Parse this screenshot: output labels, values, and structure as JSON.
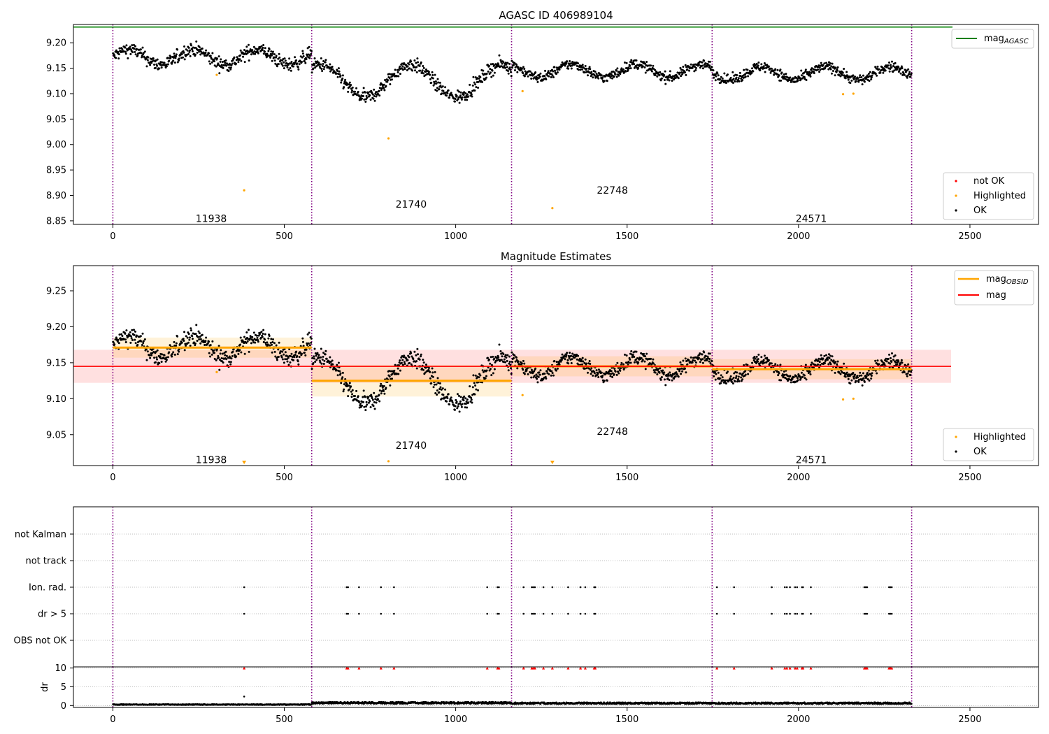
{
  "colors": {
    "ok": "#000000",
    "highlighted": "#ffa500",
    "not_ok": "#ff0000",
    "mag_agasc": "#008000",
    "mag": "#ff0000",
    "mag_obsid": "#ffa500",
    "obs_line": "#800080"
  },
  "panel1": {
    "title": "AGASC ID 406989104",
    "yticks": [
      "8.85",
      "8.90",
      "8.95",
      "9.00",
      "9.05",
      "9.10",
      "9.15",
      "9.20"
    ],
    "xticks": [
      "0",
      "500",
      "1000",
      "1500",
      "2000",
      "2500"
    ],
    "legend_top": {
      "mag_agasc": "mag",
      "mag_agasc_sub": "AGASC"
    },
    "legend_bottom": [
      "not OK",
      "Highlighted",
      "OK"
    ]
  },
  "panel2": {
    "title": "Magnitude Estimates",
    "yticks": [
      "9.05",
      "9.10",
      "9.15",
      "9.20",
      "9.25"
    ],
    "xticks": [
      "0",
      "500",
      "1000",
      "1500",
      "2000",
      "2500"
    ],
    "legend_top": {
      "mag_obsid": "mag",
      "mag_obsid_sub": "OBSID",
      "mag": "mag"
    },
    "legend_bottom": [
      "Highlighted",
      "OK"
    ]
  },
  "panel3": {
    "ylabels": [
      "not Kalman",
      "not track",
      "Ion. rad.",
      "dr > 5",
      "OBS not OK"
    ],
    "xticks": [
      "0",
      "500",
      "1000",
      "1500",
      "2000",
      "2500"
    ]
  },
  "panel4": {
    "ylabel": "dr",
    "yticks": [
      "0",
      "5",
      "10"
    ],
    "xticks": [
      "0",
      "500",
      "1000",
      "1500",
      "2000",
      "2500"
    ]
  },
  "obsids": [
    "11938",
    "21740",
    "22748",
    "24571"
  ],
  "chart_data": [
    {
      "type": "scatter",
      "title": "AGASC ID 406989104",
      "xlim": [
        -115,
        2700
      ],
      "ylim": [
        8.843,
        9.236
      ],
      "mag_agasc": 9.231,
      "obs_boundaries": [
        0,
        580,
        1163,
        1748,
        2330
      ],
      "obsid_labels": [
        {
          "text": "11938",
          "x": 287,
          "y": 8.855
        },
        {
          "text": "21740",
          "x": 870,
          "y": 8.883
        },
        {
          "text": "22748",
          "x": 1457,
          "y": 8.91
        },
        {
          "text": "24571",
          "x": 2037,
          "y": 8.855
        }
      ],
      "highlighted": [
        [
          383,
          8.91
        ],
        [
          804,
          9.012
        ],
        [
          1282,
          8.875
        ],
        [
          303,
          9.137
        ],
        [
          1195,
          9.105
        ],
        [
          2130,
          9.099
        ],
        [
          2160,
          9.1
        ]
      ],
      "ok_segments": [
        {
          "x": [
            0,
            580
          ],
          "mean": 9.172,
          "amp": 0.015,
          "noise": 0.012
        },
        {
          "x": [
            580,
            1163
          ],
          "mean": 9.125,
          "amp": 0.032,
          "noise": 0.012
        },
        {
          "x": [
            1163,
            1748
          ],
          "mean": 9.145,
          "amp": 0.013,
          "noise": 0.009
        },
        {
          "x": [
            1748,
            2330
          ],
          "mean": 9.14,
          "amp": 0.013,
          "noise": 0.009
        }
      ],
      "legend": [
        "not OK",
        "Highlighted",
        "OK"
      ]
    },
    {
      "type": "scatter",
      "title": "Magnitude Estimates",
      "xlim": [
        -115,
        2700
      ],
      "ylim": [
        9.007,
        9.285
      ],
      "mag": 9.145,
      "mag_band": [
        9.122,
        9.168
      ],
      "obsid_means": [
        {
          "x": [
            0,
            580
          ],
          "mean": 9.171,
          "band": [
            9.157,
            9.185
          ]
        },
        {
          "x": [
            580,
            1163
          ],
          "mean": 9.125,
          "band": [
            9.103,
            9.147
          ]
        },
        {
          "x": [
            1163,
            1748
          ],
          "mean": 9.145,
          "band": [
            9.131,
            9.159
          ]
        },
        {
          "x": [
            1748,
            2330
          ],
          "mean": 9.141,
          "band": [
            9.127,
            9.155
          ]
        }
      ],
      "highlighted": [
        [
          303,
          9.137
        ],
        [
          1195,
          9.105
        ],
        [
          2130,
          9.099
        ],
        [
          2160,
          9.1
        ],
        [
          804,
          9.013
        ]
      ],
      "off_scale_markers": [
        383,
        1282
      ],
      "legend": [
        "Highlighted",
        "OK"
      ]
    },
    {
      "type": "scatter",
      "categories": [
        "not Kalman",
        "not track",
        "Ion. rad.",
        "dr > 5",
        "OBS not OK"
      ],
      "xlim": [
        -115,
        2700
      ],
      "flag_x": [
        383,
        682,
        686,
        718,
        782,
        820,
        1092,
        1122,
        1126,
        1198,
        1222,
        1226,
        1231,
        1256,
        1282,
        1328,
        1364,
        1378,
        1404,
        1407,
        1762,
        1812,
        1922,
        1960,
        1966,
        1975,
        1990,
        1996,
        2010,
        2013,
        2036,
        2192,
        2196,
        2200,
        2264,
        2268,
        2272
      ]
    },
    {
      "type": "line",
      "ylabel": "dr",
      "xlim": [
        -115,
        2700
      ],
      "ylim": [
        -0.5,
        10.3
      ],
      "ytick_values": [
        0,
        5,
        10
      ],
      "capped_value": 10,
      "level_segments": [
        {
          "x": [
            0,
            580
          ],
          "level": 0.3
        },
        {
          "x": [
            580,
            1163
          ],
          "level": 0.8
        },
        {
          "x": [
            1163,
            1748
          ],
          "level": 0.7
        },
        {
          "x": [
            1748,
            2330
          ],
          "level": 0.7
        }
      ],
      "outlier": [
        383,
        2.4
      ]
    }
  ]
}
